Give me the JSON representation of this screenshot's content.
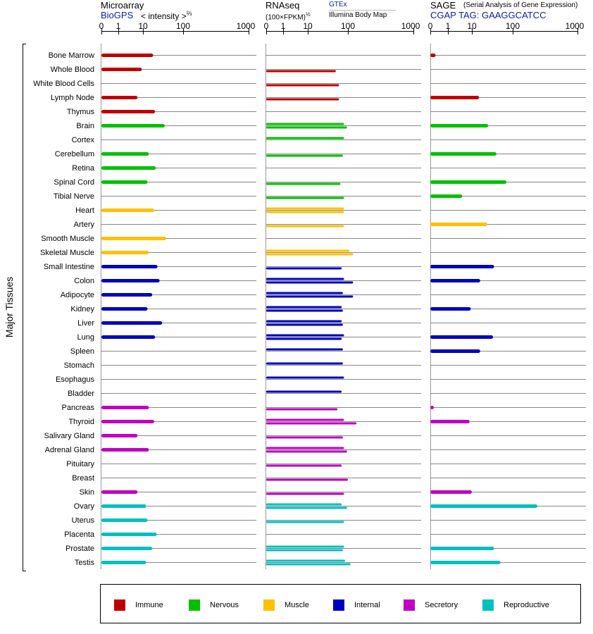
{
  "panels": {
    "microarray": {
      "title": "Microarray",
      "source": "BioGPS",
      "unit_prefix": "< intensity >",
      "unit_exp": "⅔"
    },
    "rnaseq": {
      "title": "RNAseq",
      "unit": "(100×FPKM)",
      "unit_exp": "½",
      "source_top": "GTEx",
      "source_bottom": "Illumina Body Map"
    },
    "sage": {
      "title": "SAGE",
      "subtitle": "(Serial Analysis of Gene Expression)",
      "tag_label": "CGAP TAG: GAAGGCATCC"
    }
  },
  "y_group_label": "Major Tissues",
  "legend": [
    {
      "label": "Immune",
      "color": "#c00000"
    },
    {
      "label": "Nervous",
      "color": "#00c000"
    },
    {
      "label": "Muscle",
      "color": "#ffc000"
    },
    {
      "label": "Internal",
      "color": "#0000c0"
    },
    {
      "label": "Secretory",
      "color": "#c000c0"
    },
    {
      "label": "Reproductive",
      "color": "#00c0c0"
    }
  ],
  "chart_data": {
    "type": "bar",
    "x_scale": "log",
    "tick_labels": [
      "0",
      "1",
      "10",
      "100",
      "1000"
    ],
    "categories": [
      "Bone Marrow",
      "Whole Blood",
      "White Blood Cells",
      "Lymph Node",
      "Thymus",
      "Brain",
      "Cortex",
      "Cerebellum",
      "Retina",
      "Spinal Cord",
      "Tibial Nerve",
      "Heart",
      "Artery",
      "Smooth Muscle",
      "Skeletal Muscle",
      "Small Intestine",
      "Colon",
      "Adipocyte",
      "Kidney",
      "Liver",
      "Lung",
      "Spleen",
      "Stomach",
      "Esophagus",
      "Bladder",
      "Pancreas",
      "Thyroid",
      "Salivary Gland",
      "Adrenal Gland",
      "Pituitary",
      "Breast",
      "Skin",
      "Ovary",
      "Uterus",
      "Placenta",
      "Prostate",
      "Testis"
    ],
    "systems": [
      "Immune",
      "Immune",
      "Immune",
      "Immune",
      "Immune",
      "Nervous",
      "Nervous",
      "Nervous",
      "Nervous",
      "Nervous",
      "Nervous",
      "Muscle",
      "Muscle",
      "Muscle",
      "Muscle",
      "Internal",
      "Internal",
      "Internal",
      "Internal",
      "Internal",
      "Internal",
      "Internal",
      "Internal",
      "Internal",
      "Internal",
      "Secretory",
      "Secretory",
      "Secretory",
      "Secretory",
      "Secretory",
      "Secretory",
      "Secretory",
      "Reproductive",
      "Reproductive",
      "Reproductive",
      "Reproductive",
      "Reproductive"
    ],
    "microarray": [
      18,
      9,
      null,
      6,
      20,
      35,
      null,
      14,
      21,
      13,
      null,
      19,
      null,
      38,
      14,
      23,
      26,
      17,
      13,
      30,
      20,
      null,
      null,
      null,
      null,
      14,
      19,
      6,
      14,
      null,
      null,
      6,
      12,
      13,
      22,
      17,
      12
    ],
    "rnaseq_gtex": [
      null,
      null,
      null,
      null,
      null,
      80,
      80,
      null,
      null,
      null,
      null,
      80,
      null,
      null,
      105,
      null,
      80,
      75,
      70,
      70,
      80,
      75,
      75,
      80,
      70,
      null,
      80,
      null,
      80,
      null,
      null,
      null,
      70,
      null,
      null,
      80,
      85
    ],
    "rnaseq_ibm": [
      null,
      50,
      60,
      60,
      null,
      95,
      null,
      75,
      null,
      65,
      80,
      80,
      80,
      null,
      120,
      70,
      120,
      120,
      75,
      75,
      70,
      null,
      null,
      null,
      null,
      55,
      135,
      75,
      95,
      70,
      100,
      80,
      95,
      80,
      null,
      75,
      110
    ],
    "sage": [
      0.3,
      null,
      null,
      15,
      null,
      25,
      null,
      40,
      null,
      70,
      4,
      null,
      24,
      null,
      null,
      35,
      16,
      null,
      9,
      null,
      33,
      16,
      null,
      null,
      null,
      0.2,
      8,
      null,
      null,
      null,
      null,
      10,
      240,
      null,
      null,
      35,
      50
    ]
  }
}
